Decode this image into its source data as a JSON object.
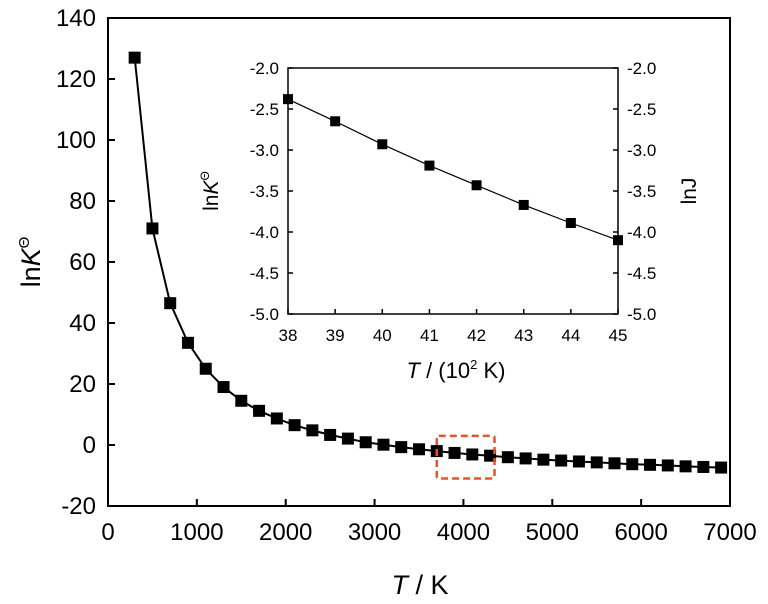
{
  "chart_data": [
    {
      "type": "scatter",
      "title": "",
      "xlabel": {
        "symbol": "T",
        "rest": " / K"
      },
      "ylabel": {
        "prefix": "ln",
        "symbol": "K",
        "sup": "Θ"
      },
      "xlim": [
        0,
        7000
      ],
      "ylim": [
        -20,
        140
      ],
      "xticks": [
        "0",
        "1000",
        "2000",
        "3000",
        "4000",
        "5000",
        "6000",
        "7000"
      ],
      "yticks": [
        "-20",
        "0",
        "20",
        "40",
        "60",
        "80",
        "100",
        "120",
        "140"
      ],
      "grid": false,
      "series": [
        {
          "marker": "square",
          "fit_line": true,
          "x": [
            300,
            500,
            700,
            900,
            1100,
            1300,
            1500,
            1700,
            1900,
            2100,
            2300,
            2500,
            2700,
            2900,
            3100,
            3300,
            3500,
            3700,
            3900,
            4100,
            4300,
            4500,
            4700,
            4900,
            5100,
            5300,
            5500,
            5700,
            5900,
            6100,
            6300,
            6500,
            6700,
            6900
          ],
          "y": [
            127,
            71,
            46.5,
            33.5,
            25,
            19,
            14.5,
            11.2,
            8.7,
            6.5,
            4.8,
            3.3,
            2.1,
            0.9,
            0.1,
            -0.7,
            -1.4,
            -2.0,
            -2.6,
            -3.1,
            -3.5,
            -4.0,
            -4.4,
            -4.8,
            -5.1,
            -5.4,
            -5.7,
            -6.0,
            -6.3,
            -6.5,
            -6.7,
            -7.0,
            -7.2,
            -7.4
          ]
        }
      ],
      "highlight_box": {
        "x": [
          3700,
          4350
        ],
        "y": [
          -11,
          3
        ],
        "color": "#e2552d"
      }
    },
    {
      "type": "scatter",
      "title": "",
      "xlabel": {
        "symbol": "T",
        "rest": " / (10",
        "sup": "2",
        "tail": " K)"
      },
      "ylabel_left": {
        "prefix": "ln",
        "symbol": "K",
        "sup": "Θ"
      },
      "ylabel_right": {
        "text": "lnJ"
      },
      "xlim": [
        38,
        45
      ],
      "ylim": [
        -5.0,
        -2.0
      ],
      "xticks": [
        "38",
        "39",
        "40",
        "41",
        "42",
        "43",
        "44",
        "45"
      ],
      "yticks": [
        "-5.0",
        "-4.5",
        "-4.0",
        "-3.5",
        "-3.0",
        "-2.5",
        "-2.0"
      ],
      "grid": false,
      "series": [
        {
          "marker": "square",
          "fit_line": true,
          "x": [
            38,
            39,
            40,
            41,
            42,
            43,
            44,
            45
          ],
          "y": [
            -2.38,
            -2.65,
            -2.93,
            -3.19,
            -3.43,
            -3.67,
            -3.89,
            -4.1
          ]
        }
      ]
    }
  ]
}
